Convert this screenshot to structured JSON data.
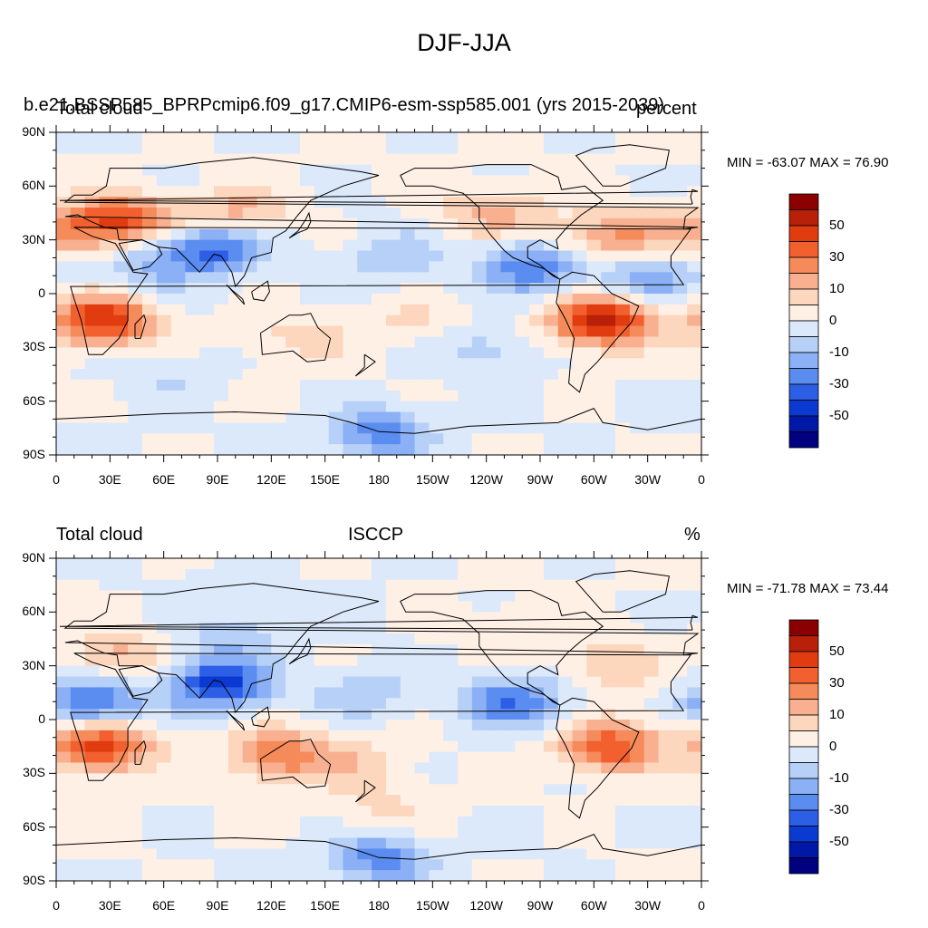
{
  "figure": {
    "title": "DJF-JJA"
  },
  "panels": [
    {
      "left_title": "Total cloud",
      "center_title": "b.e21.BSSP585_BPRPcmip6.f09_g17.CMIP6-esm-ssp585.001 (yrs 2015-2039)",
      "right_title": "percent",
      "min_max": "MIN = -63.07 MAX =  76.90"
    },
    {
      "left_title": "Total cloud",
      "center_title": "ISCCP",
      "right_title": "%",
      "min_max": "MIN = -71.78 MAX =  73.44"
    }
  ],
  "axes": {
    "lat_labels": [
      "90N",
      "60N",
      "30N",
      "0",
      "30S",
      "60S",
      "90S"
    ],
    "lon_labels": [
      "0",
      "30E",
      "60E",
      "90E",
      "120E",
      "150E",
      "180",
      "150W",
      "120W",
      "90W",
      "60W",
      "30W",
      "0"
    ]
  },
  "colorbar": {
    "labels": [
      "50",
      "30",
      "10",
      "0",
      "-10",
      "-30",
      "-50"
    ],
    "colors": [
      "#8b0000",
      "#b8200a",
      "#e03c10",
      "#f26030",
      "#f58a5a",
      "#f8b090",
      "#fcd6bd",
      "#fff0e6",
      "#dce9fb",
      "#b7d0f8",
      "#8cb0f5",
      "#5b8cf0",
      "#2d5ee6",
      "#0a3ad2",
      "#0018a8",
      "#000080"
    ]
  },
  "chart_data": [
    {
      "type": "heatmap",
      "title": "Total cloud",
      "subtitle": "b.e21.BSSP585_BPRPcmip6.f09_g17.CMIP6-esm-ssp585.001 (yrs 2015-2039)",
      "units": "percent",
      "min": -63.07,
      "max": 76.9,
      "lat_range": [
        -90,
        90
      ],
      "lon_range": [
        0,
        360
      ],
      "regions": [
        {
          "lat": 42,
          "lon": 40,
          "val": 40
        },
        {
          "lat": 45,
          "lon": 100,
          "val": 25
        },
        {
          "lat": 35,
          "lon": 15,
          "val": 30
        },
        {
          "lat": 30,
          "lon": 300,
          "val": 20
        },
        {
          "lat": 45,
          "lon": 245,
          "val": 25
        },
        {
          "lat": 35,
          "lon": 325,
          "val": 20
        },
        {
          "lat": -15,
          "lon": 25,
          "val": 60
        },
        {
          "lat": -15,
          "lon": 305,
          "val": 70
        },
        {
          "lat": -15,
          "lon": 200,
          "val": 12
        },
        {
          "lat": -25,
          "lon": 135,
          "val": 15
        },
        {
          "lat": 25,
          "lon": 88,
          "val": -45
        },
        {
          "lat": 15,
          "lon": 50,
          "val": -20
        },
        {
          "lat": 8,
          "lon": 330,
          "val": -30
        },
        {
          "lat": 15,
          "lon": 265,
          "val": -40
        },
        {
          "lat": 20,
          "lon": 190,
          "val": -18
        },
        {
          "lat": -30,
          "lon": 240,
          "val": -15
        },
        {
          "lat": -78,
          "lon": 180,
          "val": -35
        },
        {
          "lat": -45,
          "lon": 60,
          "val": -10
        }
      ]
    },
    {
      "type": "heatmap",
      "title": "Total cloud",
      "subtitle": "ISCCP",
      "units": "%",
      "min": -71.78,
      "max": 73.44,
      "lat_range": [
        -90,
        90
      ],
      "lon_range": [
        0,
        360
      ],
      "regions": [
        {
          "lat": 35,
          "lon": 35,
          "val": 25
        },
        {
          "lat": 50,
          "lon": 260,
          "val": 10
        },
        {
          "lat": 30,
          "lon": 310,
          "val": 20
        },
        {
          "lat": -15,
          "lon": 25,
          "val": 55
        },
        {
          "lat": -15,
          "lon": 310,
          "val": 50
        },
        {
          "lat": -20,
          "lon": 125,
          "val": 40
        },
        {
          "lat": -25,
          "lon": 170,
          "val": 15
        },
        {
          "lat": -50,
          "lon": 180,
          "val": 12
        },
        {
          "lat": 20,
          "lon": 90,
          "val": -55
        },
        {
          "lat": 45,
          "lon": 100,
          "val": -15
        },
        {
          "lat": 10,
          "lon": 20,
          "val": -45
        },
        {
          "lat": 10,
          "lon": 255,
          "val": -40
        },
        {
          "lat": 15,
          "lon": 170,
          "val": -18
        },
        {
          "lat": -78,
          "lon": 180,
          "val": -35
        },
        {
          "lat": 70,
          "lon": 100,
          "val": -8
        }
      ]
    }
  ]
}
